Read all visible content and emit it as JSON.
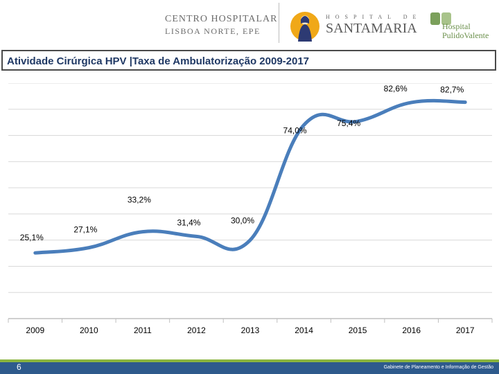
{
  "header": {
    "chln_line1": "CENTRO HOSPITALAR",
    "chln_line2": "LISBOA NORTE, EPE",
    "sm_small": "HOSPITAL DE",
    "sm_big": "SANTAMARIA",
    "pv_line1": "Hospital",
    "pv_line2": "PulidoValente"
  },
  "title": "Atividade Cirúrgica HPV |Taxa de Ambulatorização  2009-2017",
  "chart_data": {
    "type": "line",
    "title": "Atividade Cirúrgica HPV |Taxa de Ambulatorização 2009-2017",
    "categories": [
      "2009",
      "2010",
      "2011",
      "2012",
      "2013",
      "2014",
      "2015",
      "2016",
      "2017"
    ],
    "values": [
      25.1,
      27.1,
      33.2,
      31.4,
      30.0,
      74.0,
      75.4,
      82.6,
      82.7
    ],
    "labels": [
      "25,1%",
      "27,1%",
      "33,2%",
      "31,4%",
      "30,0%",
      "74,0%",
      "75,4%",
      "82,6%",
      "82,7%"
    ],
    "xlabel": "",
    "ylabel": "",
    "ylim": [
      0,
      90
    ],
    "grid": true,
    "line_color": "#4a7ebb"
  },
  "footer": {
    "page_number": "6",
    "text": "Gabinete de Planeamento e Informação de Gestão"
  }
}
